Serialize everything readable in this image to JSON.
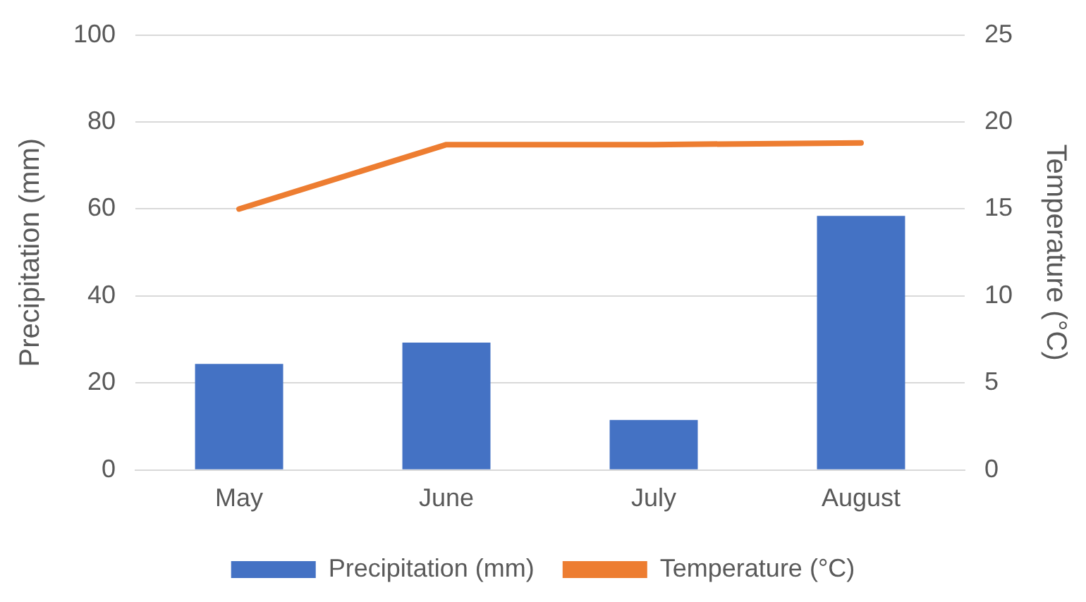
{
  "chart_data": {
    "type": "bar",
    "categories": [
      "May",
      "June",
      "July",
      "August"
    ],
    "series": [
      {
        "name": "Precipitation (mm)",
        "color": "#4472c4",
        "values": [
          24.4,
          29.3,
          11.5,
          58.4
        ]
      },
      {
        "name": "Temperature (°C)",
        "type": "line",
        "axis": "y2",
        "color": "#ed7d31",
        "values": [
          15,
          18.7,
          18.7,
          18.8
        ]
      }
    ],
    "ylabel": "Precipitation (mm)",
    "y2label": "Temperature (°C)",
    "ylim": [
      0,
      100
    ],
    "yticks": [
      0,
      20,
      40,
      60,
      80,
      100
    ],
    "y2lim": [
      0,
      25
    ],
    "y2ticks": [
      0,
      5,
      10,
      15,
      20,
      25
    ],
    "grid": "y",
    "legend": "bottom",
    "marker": "none"
  }
}
